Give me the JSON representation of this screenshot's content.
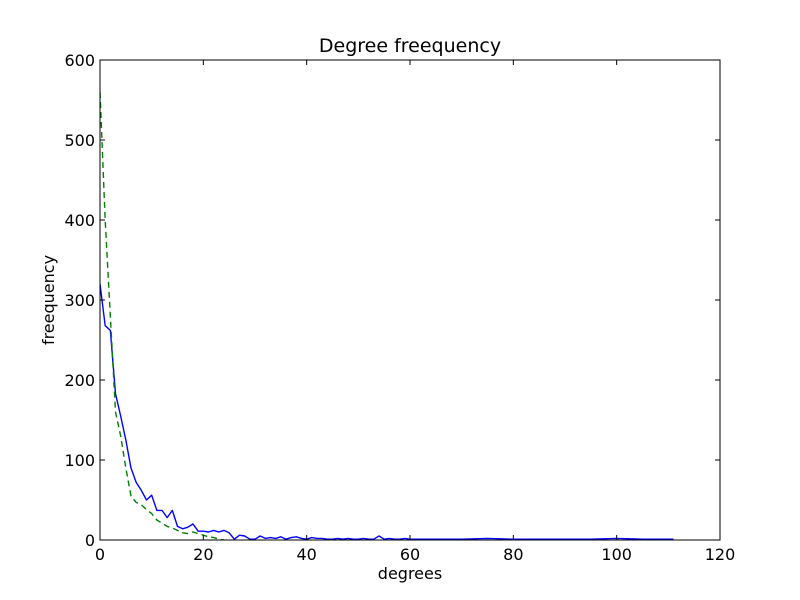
{
  "chart_data": {
    "type": "line",
    "title": "Degree freequency",
    "xlabel": "degrees",
    "ylabel": "freequency",
    "xlim": [
      0,
      120
    ],
    "ylim": [
      0,
      600
    ],
    "xticks": [
      0,
      20,
      40,
      60,
      80,
      100,
      120
    ],
    "yticks": [
      0,
      100,
      200,
      300,
      400,
      500,
      600
    ],
    "grid": false,
    "legend": "none",
    "series": [
      {
        "color": "#0000ff",
        "style": "solid",
        "x": [
          0,
          1,
          2,
          3,
          4,
          5,
          6,
          7,
          8,
          9,
          10,
          11,
          12,
          13,
          14,
          15,
          16,
          17,
          18,
          19,
          20,
          21,
          22,
          23,
          24,
          25,
          26,
          27,
          28,
          29,
          30,
          31,
          32,
          33,
          34,
          35,
          36,
          37,
          38,
          39,
          40,
          41,
          42,
          43,
          44,
          45,
          46,
          47,
          48,
          49,
          50,
          51,
          52,
          53,
          54,
          55,
          56,
          57,
          58,
          59,
          60,
          65,
          70,
          75,
          80,
          85,
          90,
          95,
          100,
          105,
          111
        ],
        "y": [
          320,
          268,
          262,
          183,
          155,
          125,
          90,
          72,
          62,
          50,
          56,
          37,
          37,
          28,
          37,
          17,
          14,
          16,
          20,
          11,
          11,
          10,
          12,
          10,
          12,
          9,
          1,
          6,
          5,
          1,
          1,
          5,
          2,
          3,
          2,
          4,
          1,
          3,
          4,
          2,
          1,
          3,
          2,
          2,
          1,
          1,
          2,
          1,
          2,
          1,
          1,
          2,
          1,
          1,
          5,
          1,
          2,
          1,
          1,
          2,
          1,
          1,
          1,
          2,
          1,
          1,
          1,
          1,
          2,
          1,
          1
        ]
      },
      {
        "color": "#008000",
        "style": "dashed",
        "x": [
          0,
          1,
          2,
          3,
          4,
          5,
          6,
          7,
          8,
          9,
          10,
          11,
          12,
          13,
          14,
          15,
          16,
          17,
          18,
          19,
          20,
          21,
          22,
          23,
          24
        ],
        "y": [
          560,
          400,
          280,
          160,
          130,
          90,
          55,
          47,
          44,
          38,
          33,
          25,
          21,
          17,
          15,
          12,
          9,
          8,
          10,
          8,
          6,
          4,
          3,
          1,
          0
        ]
      }
    ]
  }
}
